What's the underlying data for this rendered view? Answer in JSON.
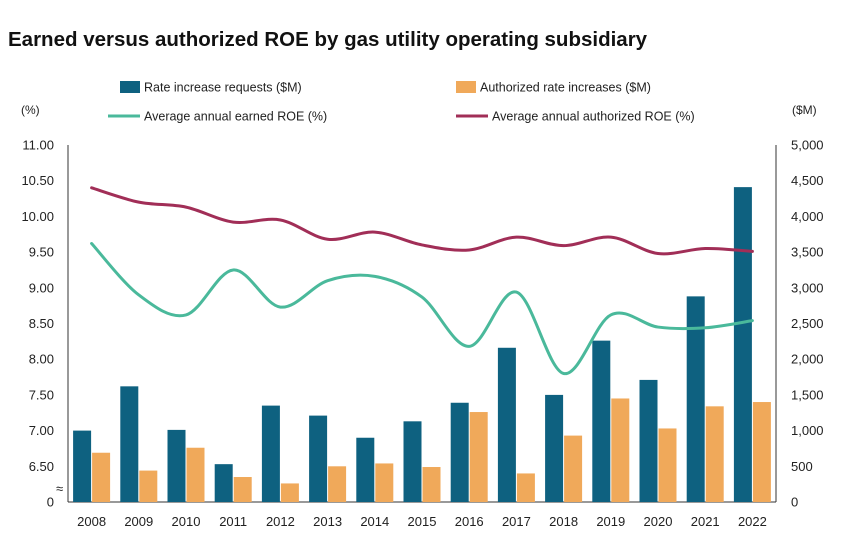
{
  "chart_data": {
    "type": "bar",
    "title": "Earned versus authorized ROE by gas utility operating subsidiary",
    "left_unit": "(%)",
    "right_unit": "($M)",
    "categories": [
      "2008",
      "2009",
      "2010",
      "2011",
      "2012",
      "2013",
      "2014",
      "2015",
      "2016",
      "2017",
      "2018",
      "2019",
      "2020",
      "2021",
      "2022"
    ],
    "left_axis": {
      "ticks": [
        "11.00",
        "10.50",
        "10.00",
        "9.50",
        "9.00",
        "8.50",
        "8.00",
        "7.50",
        "7.00",
        "6.50",
        "0"
      ],
      "break_symbol": "≈"
    },
    "right_axis": {
      "ticks": [
        "5,000",
        "4,500",
        "4,000",
        "3,500",
        "3,000",
        "2,500",
        "2,000",
        "1,500",
        "1,000",
        "500",
        "0"
      ],
      "ylim": [
        0,
        5000
      ]
    },
    "series": [
      {
        "name": "Rate increase requests ($M)",
        "kind": "bar",
        "axis": "right",
        "color": "#0e6180",
        "values": [
          1000,
          1620,
          1010,
          530,
          1350,
          1210,
          900,
          1130,
          1390,
          2160,
          1500,
          2260,
          1710,
          2880,
          4410
        ]
      },
      {
        "name": "Authorized rate increases ($M)",
        "kind": "bar",
        "axis": "right",
        "color": "#f0a95a",
        "values": [
          690,
          440,
          760,
          350,
          260,
          500,
          540,
          490,
          1260,
          400,
          930,
          1450,
          1030,
          1340,
          1400
        ]
      },
      {
        "name": "Average annual earned ROE (%)",
        "kind": "line",
        "axis": "left",
        "color": "#4ab99b",
        "values": [
          9.62,
          8.9,
          8.62,
          9.25,
          8.73,
          9.1,
          9.16,
          8.87,
          8.18,
          8.94,
          7.8,
          8.62,
          8.45,
          8.44,
          8.54
        ]
      },
      {
        "name": "Average annual authorized ROE (%)",
        "kind": "line",
        "axis": "left",
        "color": "#a12e57",
        "values": [
          10.4,
          10.2,
          10.13,
          9.92,
          9.95,
          9.68,
          9.78,
          9.6,
          9.53,
          9.71,
          9.59,
          9.71,
          9.48,
          9.55,
          9.51
        ]
      }
    ]
  }
}
